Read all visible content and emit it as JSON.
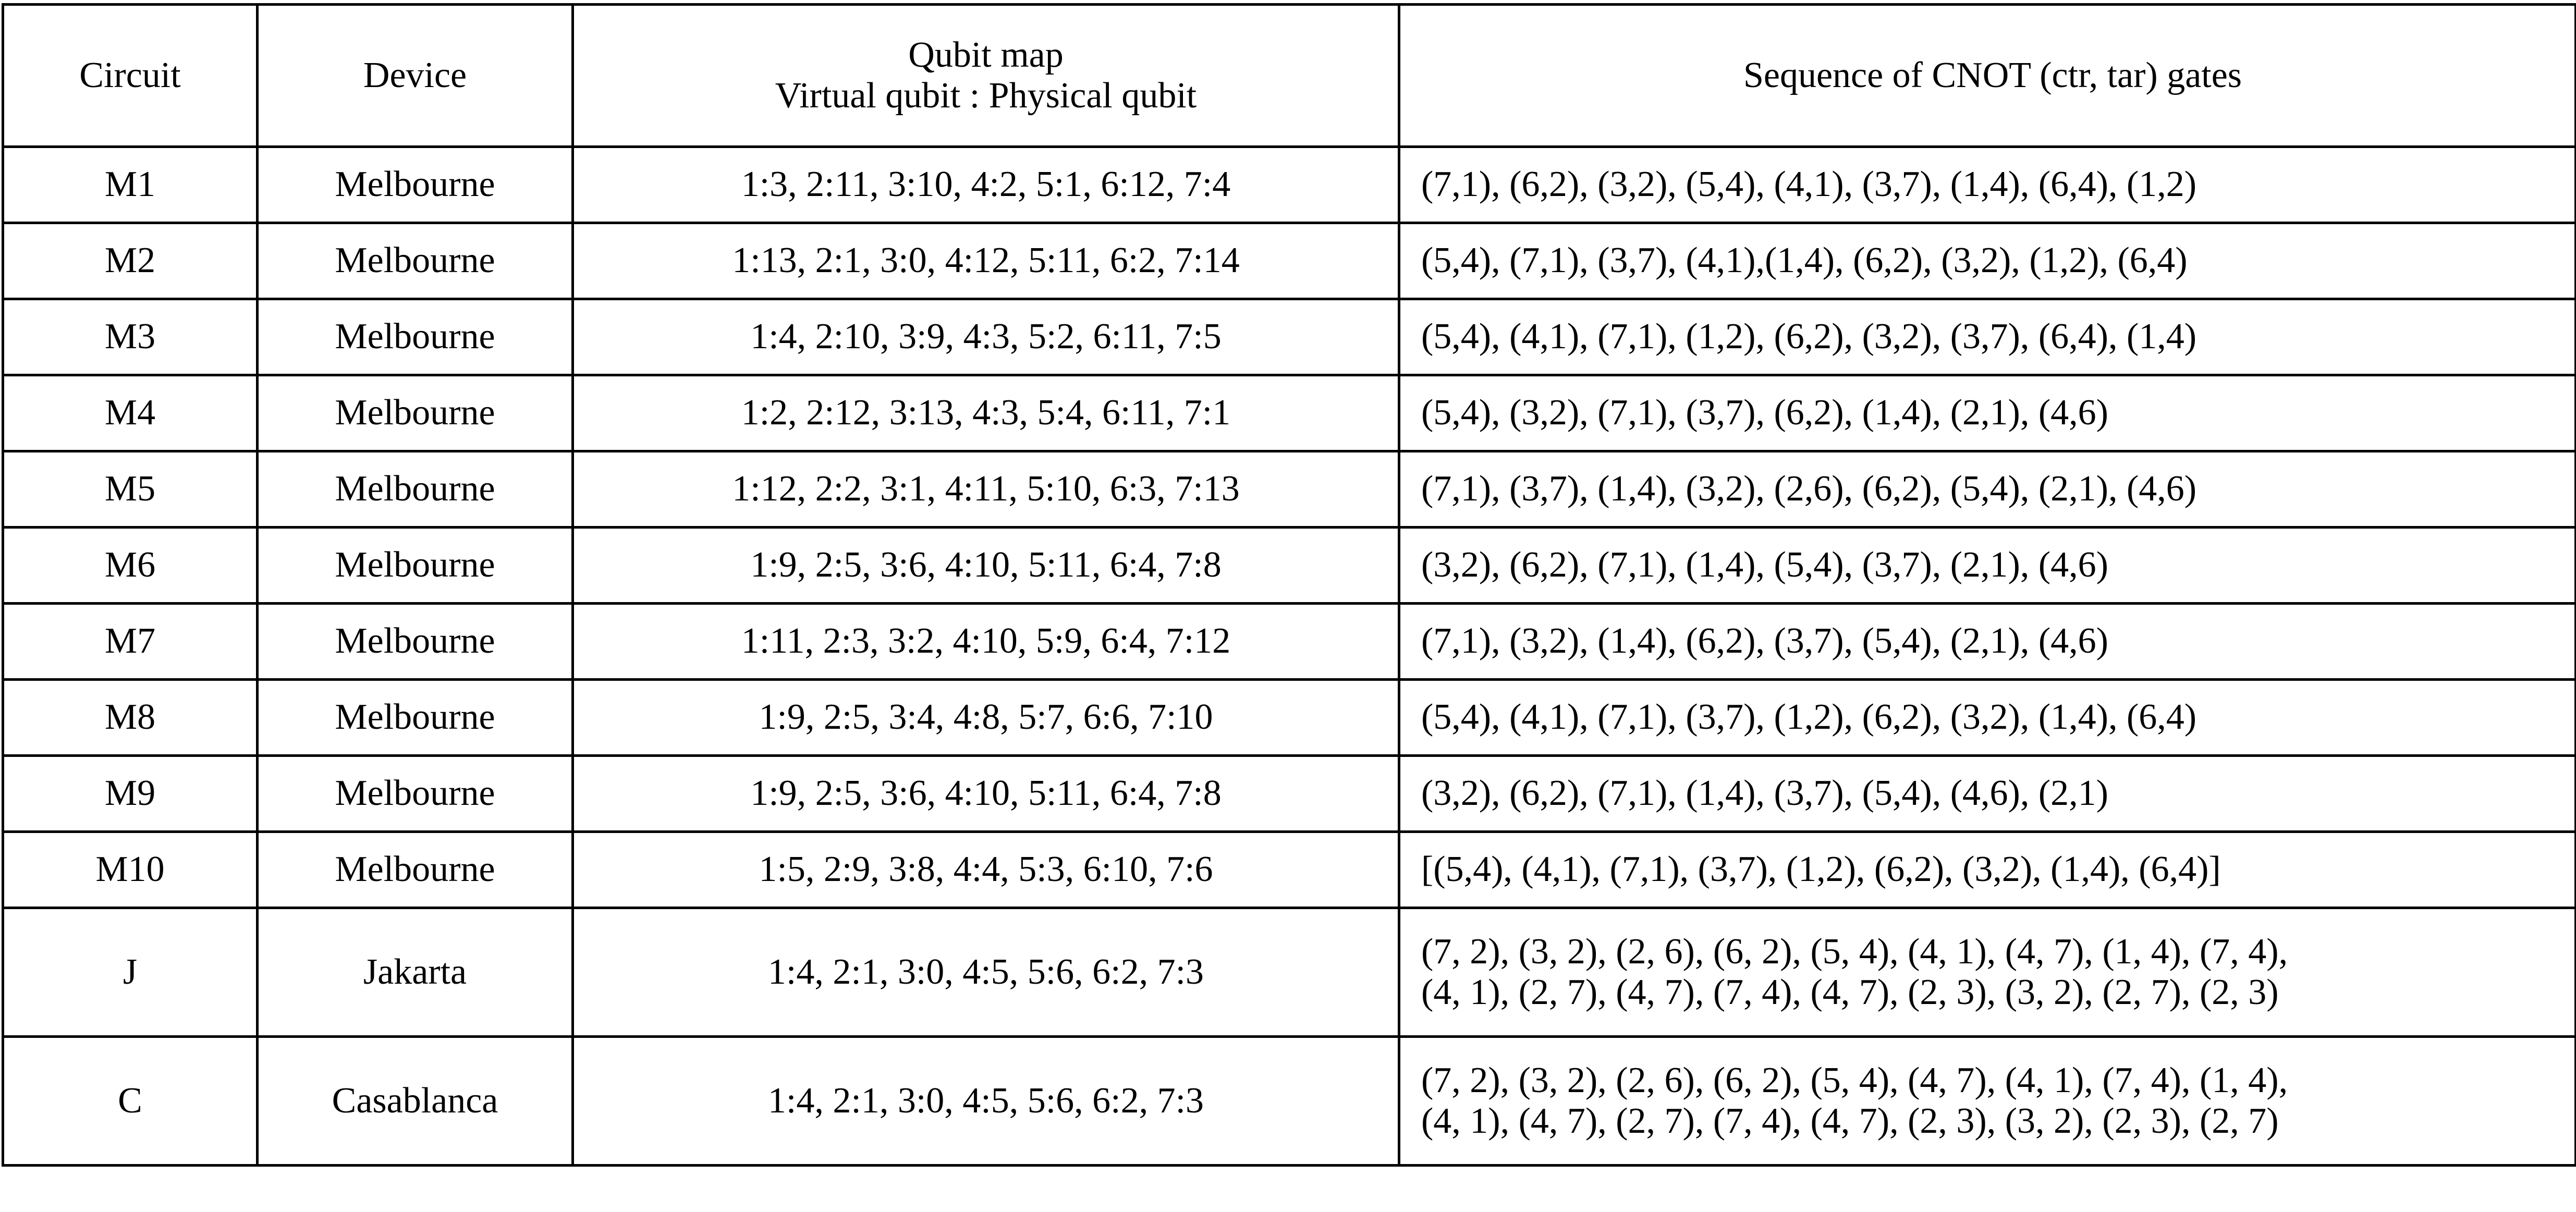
{
  "table": {
    "header": [
      "Circuit",
      "Device",
      [
        "Qubit map",
        "Virtual qubit : Physical qubit"
      ],
      "Sequence of CNOT (ctr, tar) gates"
    ],
    "rows": [
      [
        "M1",
        "Melbourne",
        "1:3, 2:11, 3:10, 4:2, 5:1, 6:12, 7:4",
        "(7,1), (6,2), (3,2), (5,4), (4,1), (3,7), (1,4), (6,4), (1,2)"
      ],
      [
        "M2",
        "Melbourne",
        "1:13, 2:1, 3:0, 4:12, 5:11, 6:2, 7:14",
        "(5,4), (7,1), (3,7), (4,1),(1,4), (6,2), (3,2), (1,2), (6,4)"
      ],
      [
        "M3",
        "Melbourne",
        "1:4, 2:10, 3:9, 4:3, 5:2, 6:11, 7:5",
        "(5,4), (4,1), (7,1), (1,2), (6,2), (3,2), (3,7), (6,4), (1,4)"
      ],
      [
        "M4",
        "Melbourne",
        "1:2, 2:12, 3:13, 4:3, 5:4, 6:11, 7:1",
        "(5,4), (3,2), (7,1), (3,7), (6,2), (1,4), (2,1), (4,6)"
      ],
      [
        "M5",
        "Melbourne",
        "1:12, 2:2, 3:1, 4:11, 5:10, 6:3, 7:13",
        "(7,1), (3,7), (1,4), (3,2), (2,6), (6,2), (5,4), (2,1), (4,6)"
      ],
      [
        "M6",
        "Melbourne",
        "1:9, 2:5, 3:6, 4:10, 5:11, 6:4, 7:8",
        "(3,2), (6,2), (7,1), (1,4), (5,4), (3,7), (2,1), (4,6)"
      ],
      [
        "M7",
        "Melbourne",
        "1:11, 2:3, 3:2, 4:10, 5:9, 6:4, 7:12",
        "(7,1), (3,2), (1,4), (6,2), (3,7), (5,4), (2,1), (4,6)"
      ],
      [
        "M8",
        "Melbourne",
        "1:9, 2:5, 3:4, 4:8, 5:7, 6:6, 7:10",
        "(5,4), (4,1), (7,1), (3,7), (1,2), (6,2), (3,2), (1,4), (6,4)"
      ],
      [
        "M9",
        "Melbourne",
        "1:9, 2:5, 3:6, 4:10, 5:11, 6:4, 7:8",
        "(3,2), (6,2), (7,1), (1,4), (3,7), (5,4), (4,6), (2,1)"
      ],
      [
        "M10",
        "Melbourne",
        "1:5, 2:9, 3:8, 4:4, 5:3, 6:10, 7:6",
        "[(5,4), (4,1), (7,1), (3,7), (1,2), (6,2), (3,2), (1,4), (6,4)]"
      ],
      [
        "J",
        "Jakarta",
        "1:4, 2:1, 3:0, 4:5, 5:6, 6:2, 7:3",
        [
          "(7, 2), (3, 2), (2, 6), (6, 2), (5, 4), (4, 1), (4, 7), (1, 4), (7, 4),",
          "(4, 1), (2, 7), (4, 7), (7, 4), (4, 7), (2, 3), (3, 2), (2, 7), (2, 3)"
        ]
      ],
      [
        "C",
        "Casablanca",
        "1:4, 2:1, 3:0, 4:5, 5:6, 6:2, 7:3",
        [
          "(7, 2), (3, 2), (2, 6), (6, 2), (5, 4), (4, 7), (4, 1), (7, 4), (1, 4),",
          "(4, 1), (4, 7), (2, 7), (7, 4), (4, 7), (2, 3), (3, 2), (2, 3), (2, 7)"
        ]
      ]
    ]
  }
}
